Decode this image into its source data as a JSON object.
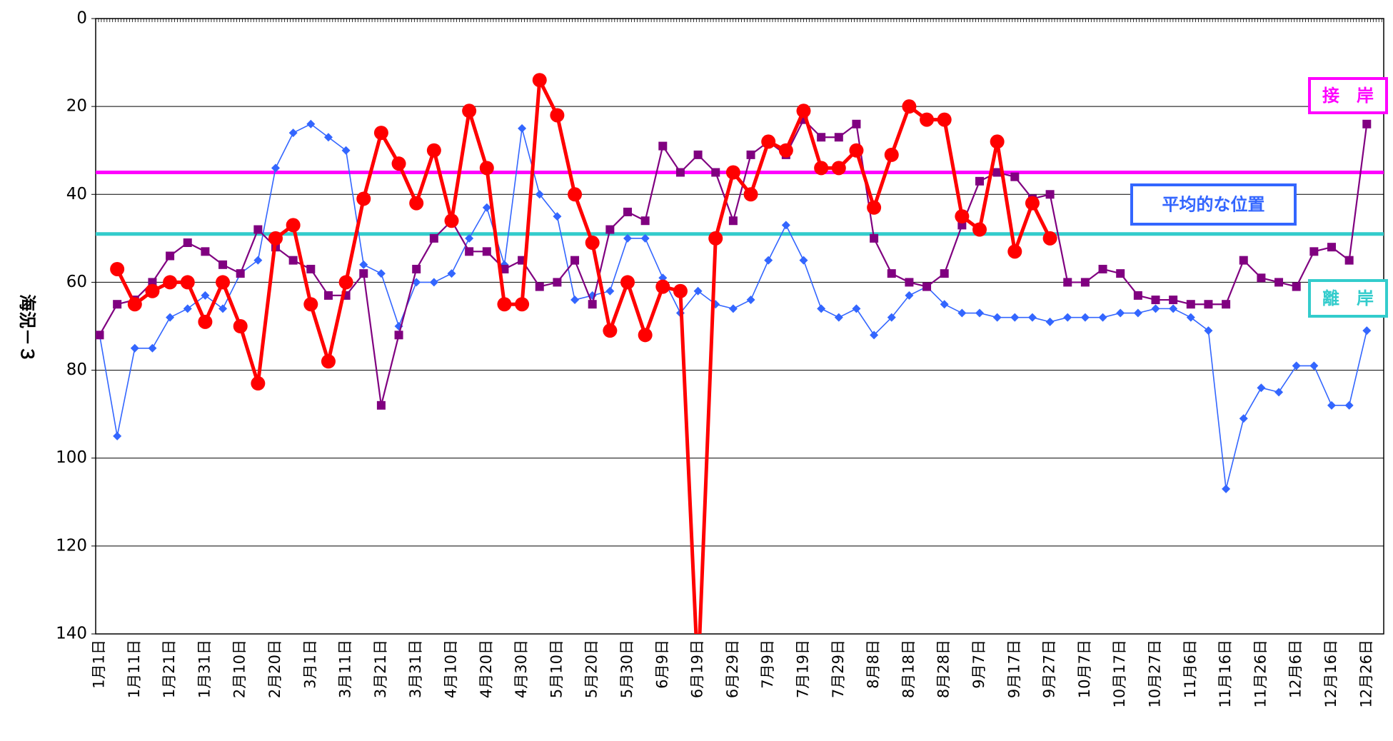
{
  "chart_data": {
    "type": "line",
    "y_label": "海況－３",
    "categories": [
      "1月1日",
      null,
      "1月11日",
      null,
      "1月21日",
      null,
      "1月31日",
      null,
      "2月10日",
      null,
      "2月20日",
      null,
      "3月1日",
      null,
      "3月11日",
      null,
      "3月21日",
      null,
      "3月31日",
      null,
      "4月10日",
      null,
      "4月20日",
      null,
      "4月30日",
      null,
      "5月10日",
      null,
      "5月20日",
      null,
      "5月30日",
      null,
      "6月9日",
      null,
      "6月19日",
      null,
      "6月29日",
      null,
      "7月9日",
      null,
      "7月19日",
      null,
      "7月29日",
      null,
      "8月8日",
      null,
      "8月18日",
      null,
      "8月28日",
      null,
      "9月7日",
      null,
      "9月17日",
      null,
      "9月27日",
      null,
      "10月7日",
      null,
      "10月17日",
      null,
      "10月27日",
      null,
      "11月6日",
      null,
      "11月16日",
      null,
      "11月26日",
      null,
      "12月6日",
      null,
      "12月16日",
      null,
      "12月26日"
    ],
    "series": [
      {
        "color": "#3366ff",
        "marker": "diamond",
        "values": [
          72,
          95,
          75,
          75,
          68,
          66,
          63,
          66,
          58,
          55,
          34,
          26,
          24,
          27,
          30,
          56,
          58,
          70,
          60,
          60,
          58,
          50,
          43,
          56,
          25,
          40,
          45,
          64,
          63,
          62,
          50,
          50,
          59,
          67,
          62,
          65,
          66,
          64,
          55,
          47,
          55,
          66,
          68,
          66,
          72,
          68,
          63,
          61,
          65,
          67,
          67,
          68,
          68,
          68,
          69,
          68,
          68,
          68,
          67,
          67,
          66,
          66,
          68,
          71,
          107,
          91,
          84,
          85,
          79,
          79,
          88,
          88,
          71
        ]
      },
      {
        "color": "#800080",
        "marker": "square",
        "values": [
          72,
          65,
          64,
          60,
          54,
          51,
          53,
          56,
          58,
          48,
          52,
          55,
          57,
          63,
          63,
          58,
          88,
          72,
          57,
          50,
          46,
          53,
          53,
          57,
          55,
          61,
          60,
          55,
          65,
          48,
          44,
          46,
          29,
          35,
          31,
          35,
          46,
          31,
          28,
          31,
          23,
          27,
          27,
          24,
          50,
          58,
          60,
          61,
          58,
          47,
          37,
          35,
          36,
          41,
          40,
          60,
          60,
          57,
          58,
          63,
          64,
          64,
          65,
          65,
          65,
          55,
          59,
          60,
          61,
          53,
          52,
          55,
          24
        ]
      },
      {
        "color": "#ff0000",
        "marker": "circle",
        "values": [
          null,
          57,
          65,
          62,
          60,
          60,
          69,
          60,
          70,
          83,
          50,
          47,
          65,
          78,
          60,
          41,
          26,
          33,
          42,
          30,
          46,
          21,
          34,
          65,
          65,
          14,
          22,
          40,
          51,
          71,
          60,
          72,
          61,
          62,
          150,
          50,
          35,
          40,
          28,
          30,
          21,
          34,
          34,
          30,
          43,
          31,
          20,
          23,
          23,
          45,
          48,
          28,
          53,
          42,
          50,
          null,
          null,
          null,
          null,
          null,
          null,
          null,
          null,
          null,
          null,
          null,
          null,
          null,
          null,
          null,
          null,
          null,
          null
        ]
      }
    ],
    "ylim": [
      0,
      140
    ],
    "y_reversed": true,
    "yticks": [
      0,
      20,
      40,
      60,
      80,
      100,
      120,
      140
    ],
    "grid": true,
    "hlines": [
      {
        "value": 35,
        "color": "#ff00ff"
      },
      {
        "value": 49,
        "color": "#33cccc"
      }
    ],
    "annotations": [
      {
        "text": "接　岸",
        "color": "#ff00ff"
      },
      {
        "text": "平均的な位置",
        "color": "#3366ff"
      },
      {
        "text": "離　岸",
        "color": "#33cccc"
      }
    ]
  }
}
